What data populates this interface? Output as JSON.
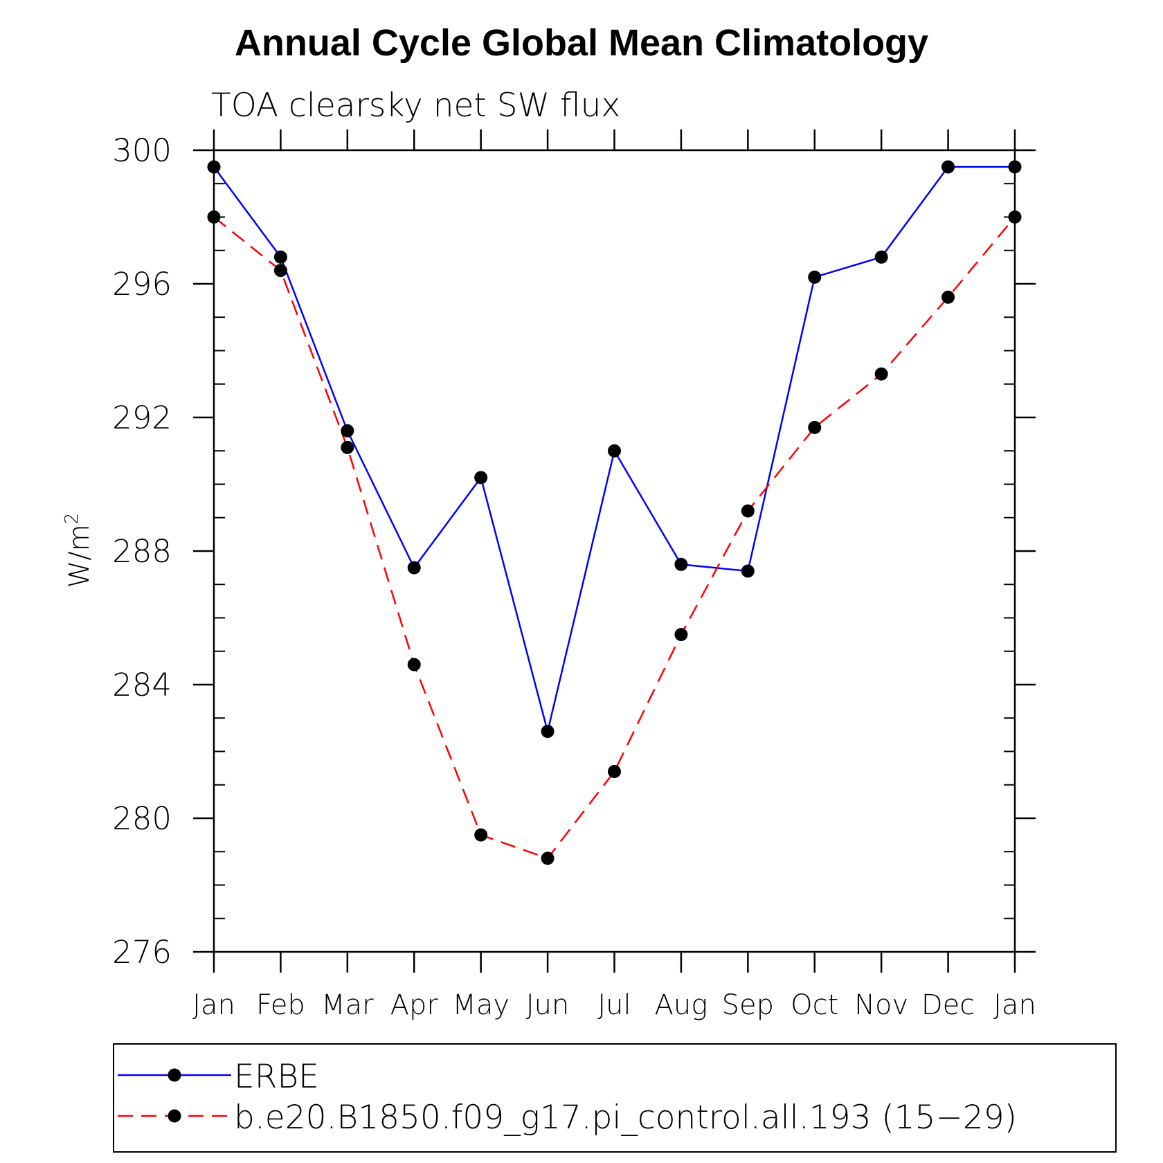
{
  "chart_data": {
    "type": "line",
    "title": "Annual Cycle Global Mean Climatology",
    "subtitle": "TOA clearsky net SW flux",
    "ylabel_base": "W/m",
    "ylabel_sup": "2",
    "xlabel": "",
    "categories": [
      "Jan",
      "Feb",
      "Mar",
      "Apr",
      "May",
      "Jun",
      "Jul",
      "Aug",
      "Sep",
      "Oct",
      "Nov",
      "Dec",
      "Jan"
    ],
    "ylim": [
      276,
      300
    ],
    "yticks": [
      "276",
      "280",
      "284",
      "288",
      "292",
      "296",
      "300"
    ],
    "ytick_values": [
      276,
      280,
      284,
      288,
      292,
      296,
      300
    ],
    "series": [
      {
        "name": "ERBE",
        "color": "#0000ff",
        "dash": "solid",
        "values": [
          299.5,
          296.8,
          291.6,
          287.5,
          290.2,
          282.6,
          291.0,
          287.6,
          287.4,
          296.2,
          296.8,
          299.5,
          299.5
        ]
      },
      {
        "name": "b.e20.B1850.f09_g17.pi_control.all.193 (15−29)",
        "color": "#ff0000",
        "dash": "dashed",
        "values": [
          298.0,
          296.4,
          291.1,
          284.6,
          279.5,
          278.8,
          281.4,
          285.5,
          289.2,
          291.7,
          293.3,
          295.6,
          298.0
        ]
      }
    ],
    "legend_position": "bottom",
    "grid": false
  }
}
